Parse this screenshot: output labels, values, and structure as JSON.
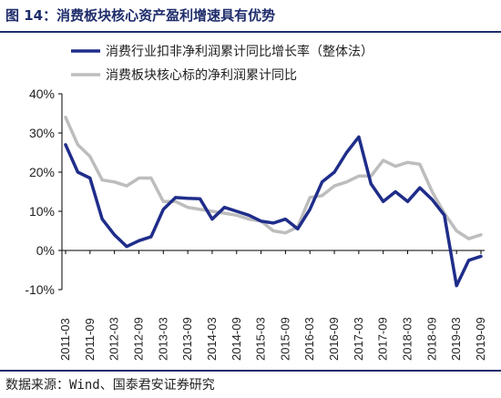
{
  "header": {
    "title": "图 14：消费板块核心资产盈利增速具有优势"
  },
  "footer": {
    "source": "数据来源：Wind、国泰君安证券研究"
  },
  "colors": {
    "series1": "#1f2d8a",
    "series2": "#bdbdbd",
    "accent": "#1f2d6b"
  },
  "chart_data": {
    "type": "line",
    "x": [
      "2011-03",
      "2011-06",
      "2011-09",
      "2011-12",
      "2012-03",
      "2012-06",
      "2012-09",
      "2012-12",
      "2013-03",
      "2013-06",
      "2013-09",
      "2013-12",
      "2014-03",
      "2014-06",
      "2014-09",
      "2014-12",
      "2015-03",
      "2015-06",
      "2015-09",
      "2015-12",
      "2016-03",
      "2016-06",
      "2016-09",
      "2016-12",
      "2017-03",
      "2017-06",
      "2017-09",
      "2017-12",
      "2018-03",
      "2018-06",
      "2018-09",
      "2018-12",
      "2019-03",
      "2019-06",
      "2019-09"
    ],
    "xticks": [
      "2011-03",
      "2011-09",
      "2012-03",
      "2012-09",
      "2013-03",
      "2013-09",
      "2014-03",
      "2014-09",
      "2015-03",
      "2015-09",
      "2016-03",
      "2016-09",
      "2017-03",
      "2017-09",
      "2018-03",
      "2018-09",
      "2019-03",
      "2019-09"
    ],
    "ylim": [
      -10,
      40
    ],
    "yticks": [
      "-10%",
      "0%",
      "10%",
      "20%",
      "30%",
      "40%"
    ],
    "grid": false,
    "legend_position": "top-right",
    "series": [
      {
        "name": "消费行业扣非净利润累计同比增长率（整体法）",
        "color": "#1f2d8a",
        "values": [
          27.0,
          20.0,
          18.5,
          8.0,
          4.0,
          1.0,
          2.5,
          3.5,
          10.5,
          13.5,
          13.3,
          13.2,
          8.0,
          11.0,
          10.0,
          9.0,
          7.5,
          7.0,
          8.0,
          5.5,
          10.5,
          17.5,
          20.0,
          25.0,
          29.0,
          17.0,
          12.5,
          15.0,
          12.5,
          16.0,
          13.0,
          9.0,
          -9.0,
          -2.5,
          -1.5
        ]
      },
      {
        "name": "消费板块核心标的净利润累计同比",
        "color": "#bdbdbd",
        "values": [
          34.0,
          27.0,
          24.0,
          18.0,
          17.5,
          16.5,
          18.5,
          18.5,
          12.5,
          12.5,
          11.0,
          10.5,
          10.0,
          9.5,
          9.0,
          8.0,
          7.5,
          5.0,
          4.5,
          6.0,
          13.5,
          14.0,
          16.5,
          17.5,
          19.0,
          19.0,
          23.0,
          21.5,
          22.5,
          22.0,
          15.0,
          9.5,
          5.0,
          3.0,
          4.0
        ]
      }
    ]
  }
}
